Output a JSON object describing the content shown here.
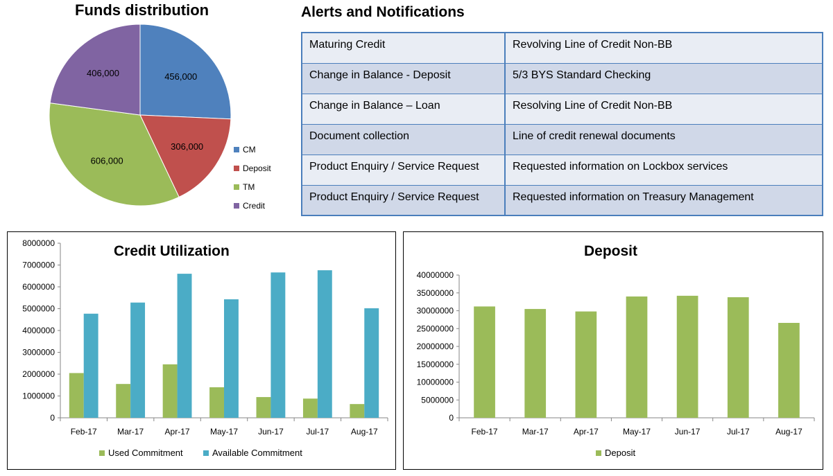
{
  "colors": {
    "cm": "#4f81bd",
    "deposit": "#c0504d",
    "tm": "#9bbb59",
    "credit": "#8064a2",
    "available": "#4bacc6",
    "table_border": "#4a7ebb",
    "table_row_light": "#e9edf4",
    "table_row_dark": "#d0d8e8"
  },
  "pie": {
    "title": "Funds distribution"
  },
  "alerts": {
    "title": "Alerts and Notifications",
    "rows": [
      {
        "type": "Maturing Credit",
        "detail": "Revolving Line of Credit Non-BB"
      },
      {
        "type": "Change in Balance - Deposit",
        "detail": "5/3 BYS Standard Checking"
      },
      {
        "type": "Change in Balance – Loan",
        "detail": "Resolving Line of Credit Non-BB"
      },
      {
        "type": "Document collection",
        "detail": "Line of credit renewal documents"
      },
      {
        "type": "Product Enquiry / Service Request",
        "detail": "Requested information on Lockbox services"
      },
      {
        "type": "Product Enquiry / Service Request",
        "detail": "Requested information on Treasury Management"
      }
    ]
  },
  "credit_chart": {
    "title": "Credit Utilization"
  },
  "deposit_chart": {
    "title": "Deposit"
  },
  "chart_data": [
    {
      "type": "pie",
      "title": "Funds distribution",
      "labels": [
        "CM",
        "Deposit",
        "TM",
        "Credit"
      ],
      "values": [
        456000,
        306000,
        606000,
        406000
      ],
      "value_labels": [
        "456,000",
        "306,000",
        "606,000",
        "406,000"
      ],
      "legend": "right"
    },
    {
      "type": "bar",
      "title": "Credit Utilization",
      "categories": [
        "Feb-17",
        "Mar-17",
        "Apr-17",
        "May-17",
        "Jun-17",
        "Jul-17",
        "Aug-17"
      ],
      "series": [
        {
          "name": "Used Commitment",
          "values": [
            2050000,
            1550000,
            2450000,
            1400000,
            950000,
            880000,
            630000
          ]
        },
        {
          "name": "Available Commitment",
          "values": [
            4770000,
            5280000,
            6600000,
            5430000,
            6660000,
            6760000,
            5020000
          ]
        }
      ],
      "ylim": [
        0,
        8000000
      ],
      "yticks": [
        0,
        1000000,
        2000000,
        3000000,
        4000000,
        5000000,
        6000000,
        7000000,
        8000000
      ],
      "legend": "bottom",
      "grid": false
    },
    {
      "type": "bar",
      "title": "Deposit",
      "categories": [
        "Feb-17",
        "Mar-17",
        "Apr-17",
        "May-17",
        "Jun-17",
        "Jul-17",
        "Aug-17"
      ],
      "series": [
        {
          "name": "Deposit",
          "values": [
            31200000,
            30500000,
            29800000,
            34000000,
            34200000,
            33800000,
            26600000
          ]
        }
      ],
      "ylim": [
        0,
        40000000
      ],
      "yticks": [
        0,
        5000000,
        10000000,
        15000000,
        20000000,
        25000000,
        30000000,
        35000000,
        40000000
      ],
      "legend": "bottom",
      "grid": false
    }
  ]
}
